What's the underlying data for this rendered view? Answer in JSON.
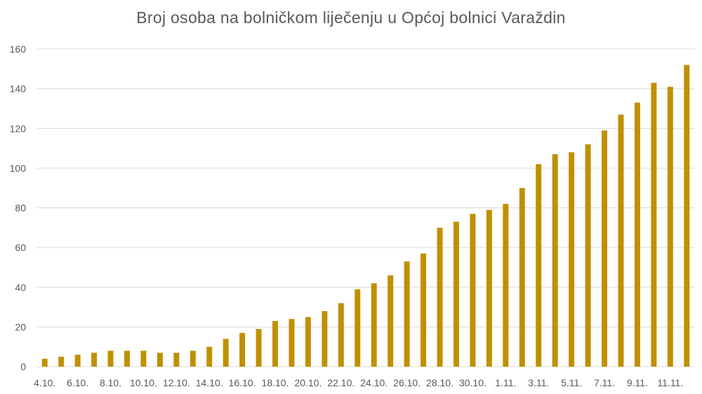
{
  "chart_data": {
    "type": "bar",
    "title": "Broj osoba na bolničkom liječenju u Općoj bolnici Varaždin",
    "xlabel": "",
    "ylabel": "",
    "ylim": [
      0,
      160
    ],
    "yticks": [
      0,
      20,
      40,
      60,
      80,
      100,
      120,
      140,
      160
    ],
    "grid": true,
    "legend": "none",
    "bar_color": "#bf9000",
    "categories": [
      "4.10.",
      "5.10.",
      "6.10.",
      "7.10.",
      "8.10.",
      "9.10.",
      "10.10.",
      "11.10.",
      "12.10.",
      "13.10.",
      "14.10.",
      "15.10.",
      "16.10.",
      "17.10.",
      "18.10.",
      "19.10.",
      "20.10.",
      "21.10.",
      "22.10.",
      "23.10.",
      "24.10.",
      "25.10.",
      "26.10.",
      "27.10.",
      "28.10.",
      "29.10.",
      "30.10.",
      "31.10.",
      "1.11.",
      "2.11.",
      "3.11.",
      "4.11.",
      "5.11.",
      "6.11.",
      "7.11.",
      "8.11.",
      "9.11.",
      "10.11.",
      "11.11.",
      "12.11."
    ],
    "x_tick_labels": [
      "4.10.",
      "6.10.",
      "8.10.",
      "10.10.",
      "12.10.",
      "14.10.",
      "16.10.",
      "18.10.",
      "20.10.",
      "22.10.",
      "24.10.",
      "26.10.",
      "28.10.",
      "30.10.",
      "1.11.",
      "3.11.",
      "5.11.",
      "7.11.",
      "9.11.",
      "11.11."
    ],
    "values": [
      4,
      5,
      6,
      7,
      8,
      8,
      8,
      7,
      7,
      8,
      10,
      14,
      17,
      19,
      23,
      24,
      25,
      28,
      32,
      39,
      42,
      46,
      53,
      57,
      70,
      73,
      77,
      79,
      82,
      90,
      102,
      107,
      108,
      112,
      119,
      127,
      133,
      143,
      141,
      152
    ]
  }
}
